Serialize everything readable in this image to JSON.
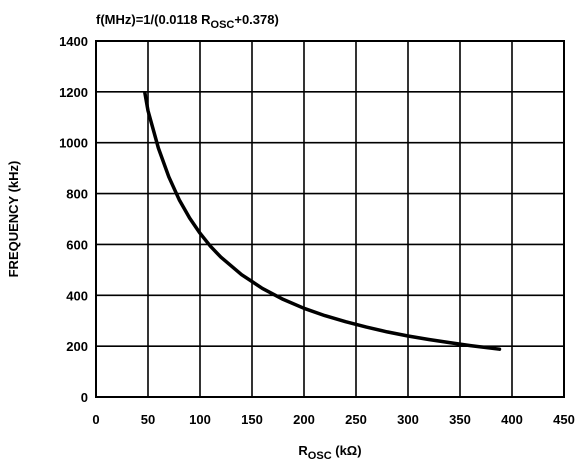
{
  "chart_data": {
    "type": "line",
    "title": {
      "main": "f(MHz)=1/(0.0118 R",
      "sub": "OSC",
      "tail": "+0.378)"
    },
    "xlabel": {
      "main": "R",
      "sub": "OSC",
      "tail": " (kΩ)"
    },
    "ylabel": "FREQUENCY (kHz)",
    "xlim": [
      0,
      450
    ],
    "ylim": [
      0,
      1400
    ],
    "x_ticks": [
      0,
      50,
      100,
      150,
      200,
      250,
      300,
      350,
      400,
      450
    ],
    "y_ticks": [
      0,
      200,
      400,
      600,
      800,
      1000,
      1200,
      1400
    ],
    "grid": true,
    "series": [
      {
        "x": [
          47,
          50,
          60,
          70,
          80,
          90,
          100,
          110,
          120,
          140,
          160,
          180,
          200,
          220,
          240,
          260,
          280,
          300,
          320,
          340,
          360,
          388
        ],
        "y": [
          1195,
          1126,
          979,
          866,
          776,
          704,
          644,
          593,
          550,
          481,
          427,
          384,
          349,
          320,
          296,
          275,
          256,
          240,
          226,
          214,
          202,
          188
        ]
      }
    ]
  }
}
